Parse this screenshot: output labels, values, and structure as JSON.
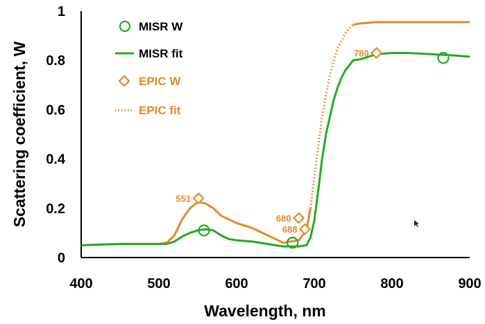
{
  "chart_data": {
    "type": "line",
    "xlabel": "Wavelength, nm",
    "ylabel": "Scattering coefficient, W",
    "xlim": [
      400,
      900
    ],
    "ylim": [
      0,
      1
    ],
    "x_ticks": [
      "400",
      "500",
      "600",
      "700",
      "800",
      "900"
    ],
    "y_ticks": [
      "0",
      "0.2",
      "0.4",
      "0.6",
      "0.8",
      "1"
    ],
    "grid": false,
    "legend_position": "top-left",
    "colors": {
      "misr": "#22aa22",
      "epic": "#e08a2a"
    },
    "legend": [
      {
        "label": "MISR W",
        "marker": "circle",
        "color": "#22aa22"
      },
      {
        "label": "MISR fit",
        "marker": "solid-line",
        "color": "#22aa22"
      },
      {
        "label": "EPIC W",
        "marker": "diamond",
        "color": "#e08a2a"
      },
      {
        "label": "EPIC fit",
        "marker": "dotted-line",
        "color": "#e08a2a"
      }
    ],
    "series": [
      {
        "name": "MISR fit",
        "style": "solid",
        "color": "#22aa22",
        "x": [
          400,
          450,
          500,
          510,
          520,
          530,
          540,
          550,
          560,
          570,
          580,
          590,
          600,
          620,
          640,
          660,
          680,
          690,
          695,
          700,
          705,
          710,
          715,
          720,
          725,
          730,
          735,
          740,
          745,
          750,
          760,
          780,
          800,
          820,
          850,
          880,
          900
        ],
        "y": [
          0.05,
          0.055,
          0.055,
          0.055,
          0.065,
          0.085,
          0.1,
          0.11,
          0.115,
          0.11,
          0.09,
          0.075,
          0.07,
          0.065,
          0.055,
          0.045,
          0.045,
          0.05,
          0.08,
          0.15,
          0.27,
          0.4,
          0.5,
          0.57,
          0.64,
          0.69,
          0.73,
          0.76,
          0.78,
          0.8,
          0.805,
          0.825,
          0.83,
          0.83,
          0.825,
          0.82,
          0.815
        ]
      },
      {
        "name": "EPIC fit",
        "style": "dotted+solid",
        "color": "#e08a2a",
        "x": [
          400,
          450,
          500,
          510,
          520,
          530,
          540,
          550,
          560,
          570,
          580,
          590,
          600,
          620,
          640,
          660,
          680,
          690,
          695,
          700,
          705,
          710,
          715,
          720,
          725,
          730,
          735,
          740,
          745,
          750,
          760,
          780,
          800,
          820,
          850,
          880,
          900
        ],
        "y": [
          0.05,
          0.055,
          0.055,
          0.06,
          0.09,
          0.155,
          0.2,
          0.225,
          0.22,
          0.2,
          0.17,
          0.155,
          0.14,
          0.12,
          0.09,
          0.06,
          0.07,
          0.11,
          0.2,
          0.32,
          0.45,
          0.57,
          0.66,
          0.74,
          0.8,
          0.85,
          0.88,
          0.91,
          0.93,
          0.945,
          0.95,
          0.955,
          0.955,
          0.955,
          0.955,
          0.955,
          0.955
        ]
      }
    ],
    "misr_w_points": [
      {
        "x": 558,
        "y": 0.11
      },
      {
        "x": 672,
        "y": 0.06
      },
      {
        "x": 866,
        "y": 0.81
      }
    ],
    "epic_w_points": [
      {
        "x": 551,
        "y": 0.24,
        "label": "551"
      },
      {
        "x": 680,
        "y": 0.16,
        "label": "680"
      },
      {
        "x": 688,
        "y": 0.115,
        "label": "688"
      },
      {
        "x": 780,
        "y": 0.83,
        "label": "780"
      }
    ]
  }
}
